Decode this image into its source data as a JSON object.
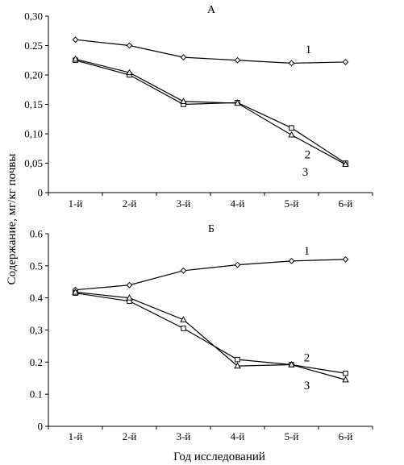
{
  "chart_data": [
    {
      "type": "line",
      "title": "A",
      "categories": [
        "1-й",
        "2-й",
        "3-й",
        "4-й",
        "5-й",
        "6-й"
      ],
      "y_tick_labels": [
        "0",
        "0,05",
        "0,10",
        "0,15",
        "0,20",
        "0.25",
        "0,30"
      ],
      "ylim": [
        0,
        0.3
      ],
      "grid": false,
      "series": [
        {
          "name": "1",
          "marker": "diamond",
          "values": [
            0.26,
            0.25,
            0.23,
            0.225,
            0.22,
            0.222
          ]
        },
        {
          "name": "2",
          "marker": "square",
          "values": [
            0.225,
            0.2,
            0.15,
            0.153,
            0.11,
            0.05
          ]
        },
        {
          "name": "3",
          "marker": "triangle",
          "values": [
            0.227,
            0.204,
            0.155,
            0.152,
            0.098,
            0.048
          ]
        }
      ]
    },
    {
      "type": "line",
      "title": "Б",
      "categories": [
        "1-й",
        "2-й",
        "3-й",
        "4-й",
        "5-й",
        "6-й"
      ],
      "y_tick_labels": [
        "0",
        "0.1",
        "0.2",
        "0,3",
        "0.4",
        "0.5",
        "0.6"
      ],
      "ylim": [
        0,
        0.6
      ],
      "grid": false,
      "series": [
        {
          "name": "1",
          "marker": "diamond",
          "values": [
            0.425,
            0.44,
            0.485,
            0.503,
            0.515,
            0.52
          ]
        },
        {
          "name": "2",
          "marker": "square",
          "values": [
            0.415,
            0.39,
            0.305,
            0.208,
            0.192,
            0.165
          ]
        },
        {
          "name": "3",
          "marker": "triangle",
          "values": [
            0.418,
            0.4,
            0.332,
            0.188,
            0.192,
            0.145
          ]
        }
      ]
    }
  ],
  "ylabel": "Содержание, мг/кг почвы",
  "xlabel": "Год исследований"
}
